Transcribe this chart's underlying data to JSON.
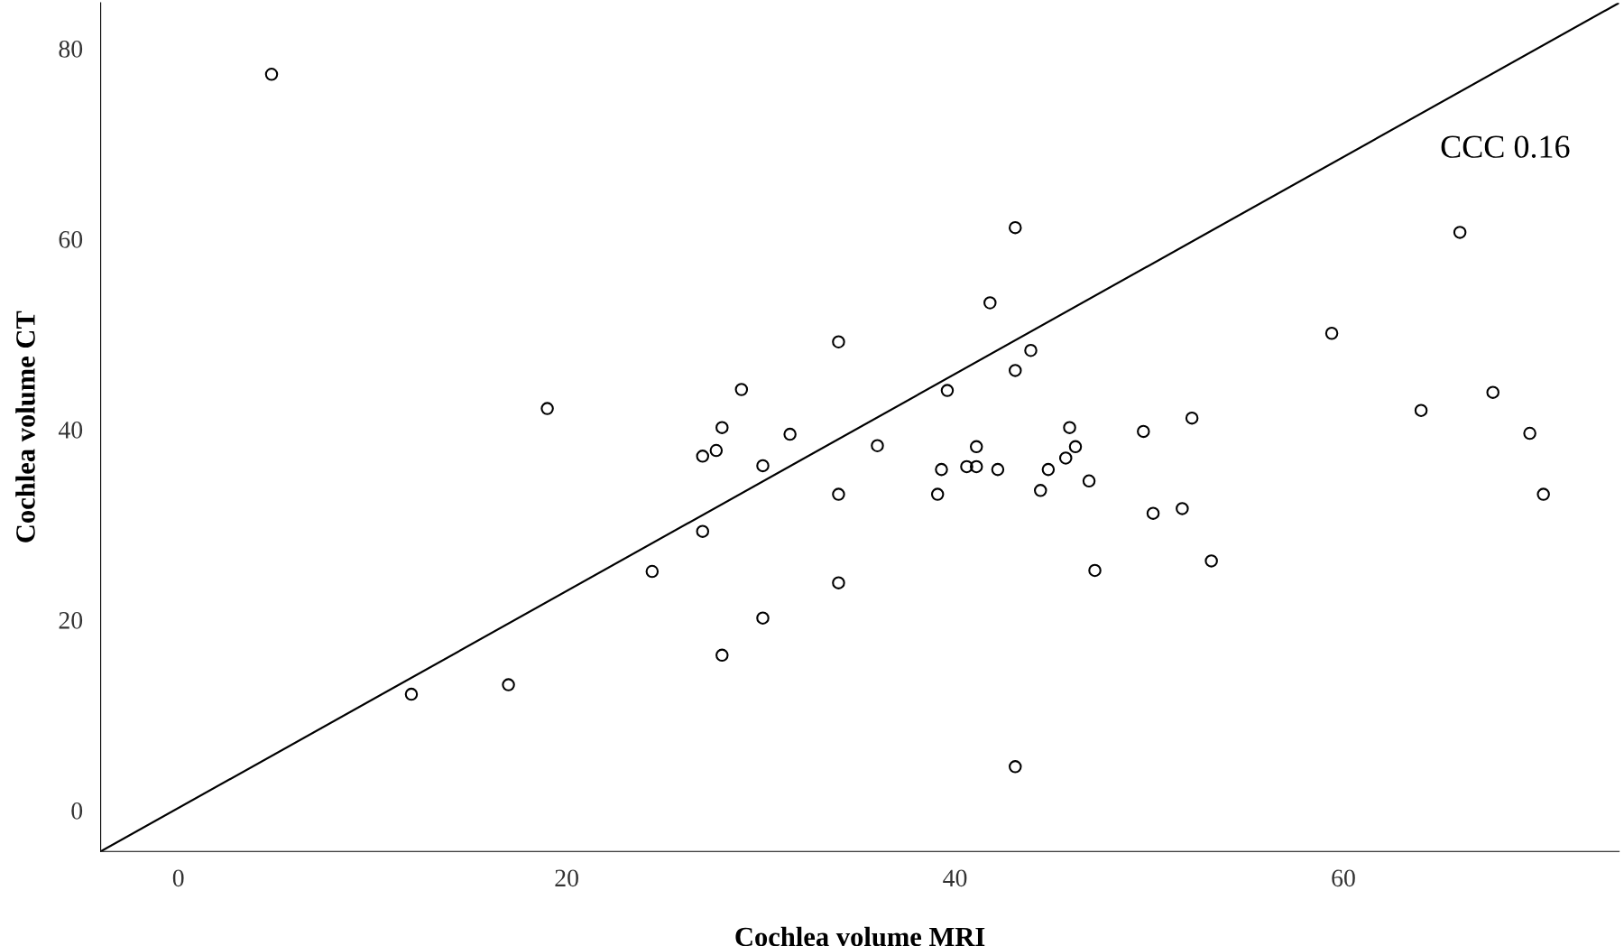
{
  "chart_data": {
    "type": "scatter",
    "xlabel": "Cochlea volume MRI",
    "ylabel": "Cochlea volume CT",
    "xlim": [
      -4,
      74.2
    ],
    "ylim": [
      -4.3,
      84.8
    ],
    "xticks": [
      0,
      20,
      40,
      60
    ],
    "yticks": [
      0,
      20,
      40,
      60,
      80
    ],
    "grid": false,
    "series": [
      {
        "color": "#000000",
        "marker": "circle",
        "x": [
          4.8,
          12.0,
          17.0,
          19.0,
          24.4,
          27.0,
          27.7,
          27.0,
          28.0,
          28.0,
          29.0,
          30.1,
          30.1,
          31.5,
          34.0,
          34.0,
          34.0,
          36.0,
          39.1,
          39.3,
          39.6,
          40.6,
          41.1,
          41.1,
          41.8,
          42.2,
          43.1,
          43.1,
          43.1,
          43.9,
          44.4,
          44.8,
          45.7,
          45.9,
          46.2,
          46.9,
          47.2,
          49.7,
          50.2,
          51.7,
          52.2,
          53.2,
          59.4,
          64.0,
          66.0,
          67.7,
          69.6,
          70.3
        ],
        "values": [
          77.3,
          12.2,
          13.2,
          42.2,
          25.1,
          37.2,
          37.8,
          29.3,
          40.2,
          16.3,
          44.2,
          36.2,
          20.2,
          39.5,
          49.2,
          33.2,
          23.9,
          38.3,
          33.2,
          35.8,
          44.1,
          36.1,
          38.2,
          36.1,
          53.3,
          35.8,
          61.2,
          46.2,
          4.6,
          48.3,
          33.6,
          35.8,
          37.0,
          40.2,
          38.2,
          34.6,
          25.2,
          39.8,
          31.2,
          31.7,
          41.2,
          26.2,
          50.1,
          42.0,
          60.7,
          43.9,
          39.6,
          33.2
        ]
      },
      {
        "type": "line",
        "color": "#000000",
        "x": [
          -4,
          74.2
        ],
        "values": [
          -4.3,
          84.8
        ],
        "marker": "none",
        "line_style": "solid"
      }
    ],
    "annotations": [
      "CCC 0.16"
    ]
  }
}
